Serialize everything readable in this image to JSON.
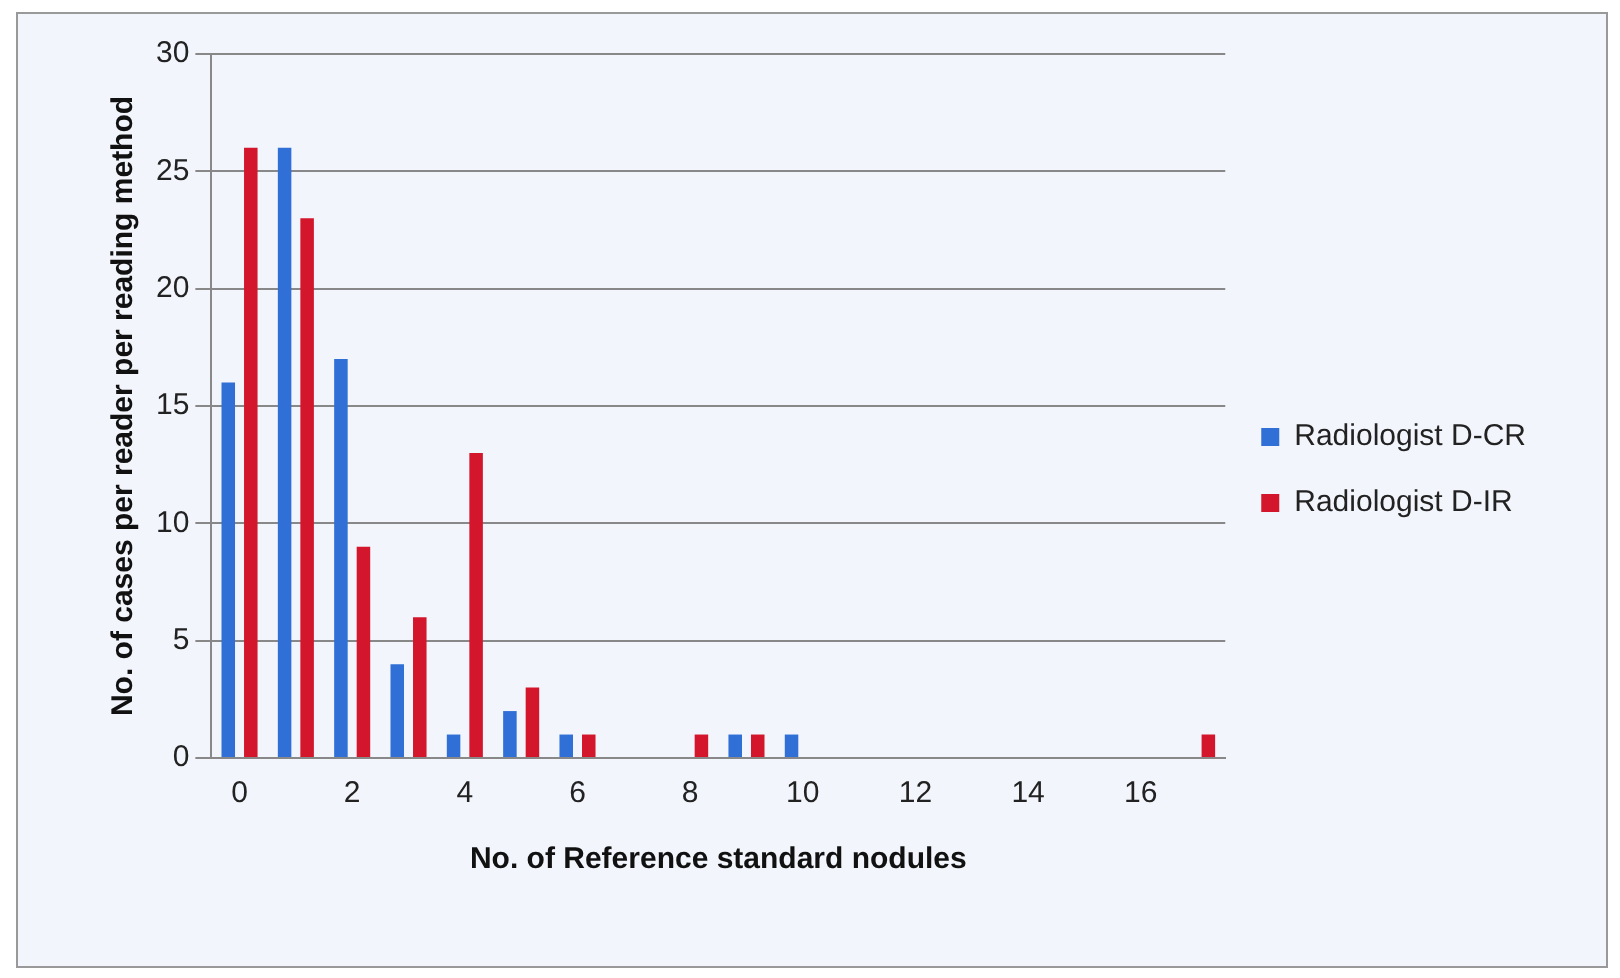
{
  "chart_data": {
    "type": "bar",
    "xlabel": "No. of Reference standard nodules",
    "ylabel": "No. of cases per reader per reading method",
    "categories": [
      "0",
      null,
      "2",
      null,
      "4",
      null,
      "6",
      null,
      "8",
      null,
      "10",
      null,
      "12",
      null,
      "14",
      null,
      "16",
      null
    ],
    "series": [
      {
        "name": "Radiologist D-CR",
        "color": "#2f6fd6",
        "values": [
          16,
          26,
          17,
          4,
          1,
          2,
          1,
          0,
          0,
          1,
          1,
          0,
          0,
          0,
          0,
          0,
          0,
          0
        ]
      },
      {
        "name": "Radiologist D-IR",
        "color": "#d3162b",
        "values": [
          26,
          23,
          9,
          6,
          13,
          3,
          1,
          0,
          1,
          1,
          0,
          0,
          0,
          0,
          0,
          0,
          0,
          1
        ]
      }
    ],
    "ylim": [
      0,
      30
    ],
    "yticks": [
      0,
      5,
      10,
      15,
      20,
      25,
      30
    ],
    "grid": "y",
    "legend": "right"
  }
}
